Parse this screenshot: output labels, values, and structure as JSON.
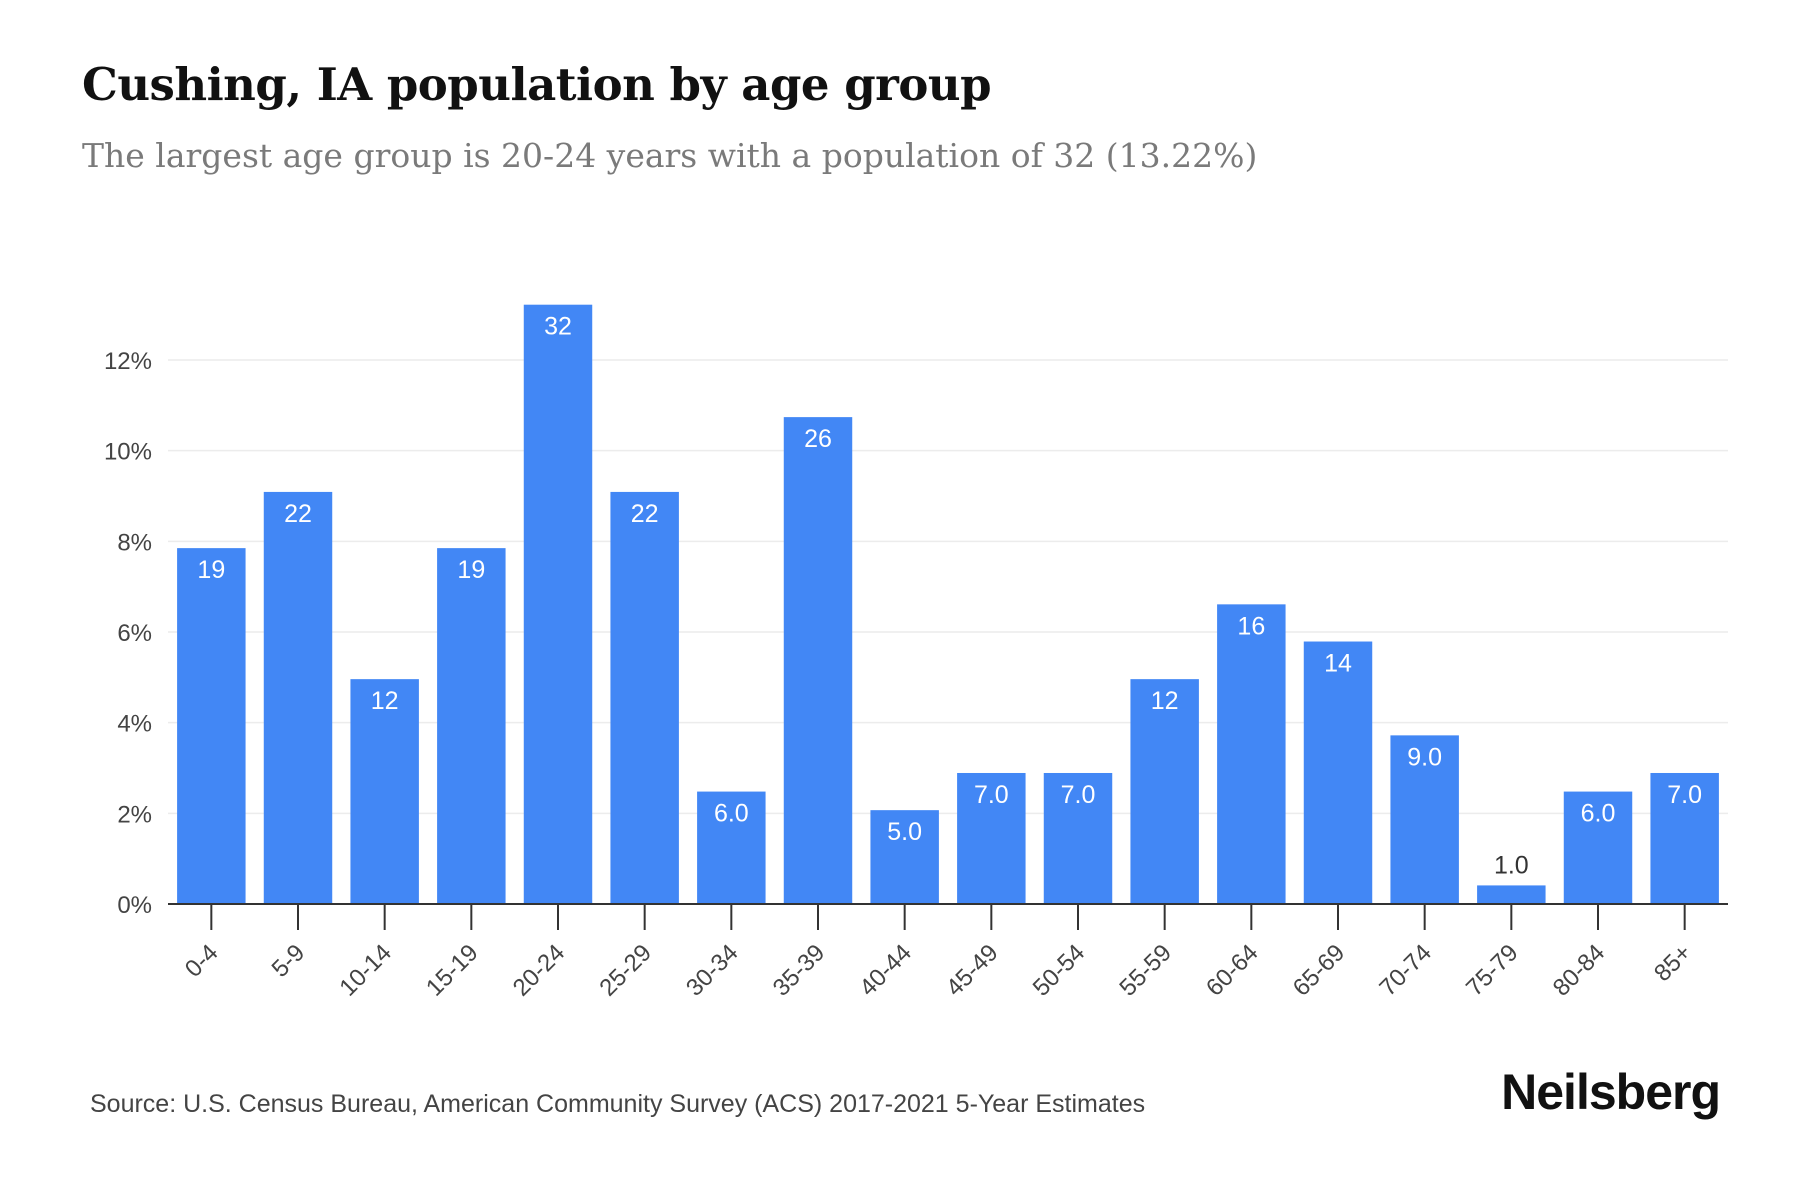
{
  "header": {
    "title": "Cushing, IA population by age group",
    "subtitle": "The largest age group is 20-24 years with a population of 32 (13.22%)"
  },
  "footer": {
    "source": "Source: U.S. Census Bureau, American Community Survey (ACS) 2017-2021 5-Year Estimates",
    "brand": "Neilsberg"
  },
  "colors": {
    "bar": "#4287f5",
    "grid": "#ececec",
    "axis": "#333333"
  },
  "chart_data": {
    "type": "bar",
    "title": "Cushing, IA population by age group",
    "subtitle": "The largest age group is 20-24 years with a population of 32 (13.22%)",
    "categories": [
      "0-4",
      "5-9",
      "10-14",
      "15-19",
      "20-24",
      "25-29",
      "30-34",
      "35-39",
      "40-44",
      "45-49",
      "50-54",
      "55-59",
      "60-64",
      "65-69",
      "70-74",
      "75-79",
      "80-84",
      "85+"
    ],
    "values": [
      7.85,
      9.09,
      4.96,
      7.85,
      13.22,
      9.09,
      2.48,
      10.74,
      2.07,
      2.89,
      2.89,
      4.96,
      6.61,
      5.79,
      3.72,
      0.41,
      2.48,
      2.89
    ],
    "data_labels": [
      "19",
      "22",
      "12",
      "19",
      "32",
      "22",
      "6.0",
      "26",
      "5.0",
      "7.0",
      "7.0",
      "12",
      "16",
      "14",
      "9.0",
      "1.0",
      "6.0",
      "7.0"
    ],
    "yticks": [
      "0%",
      "2%",
      "4%",
      "6%",
      "8%",
      "10%",
      "12%"
    ],
    "ylim": [
      0,
      14
    ],
    "grid": true,
    "legend": "none"
  }
}
